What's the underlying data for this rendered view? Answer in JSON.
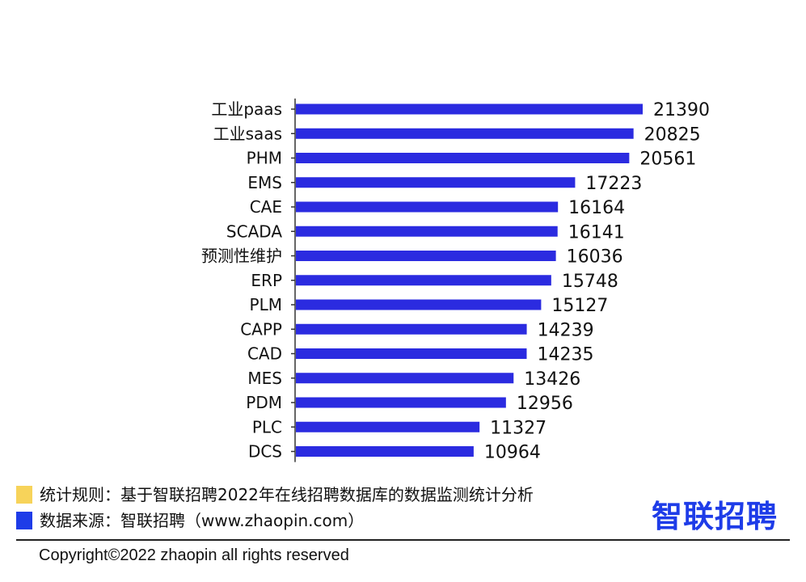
{
  "colors": {
    "bar": "#2b2be0",
    "axis": "#333333",
    "text": "#111111",
    "legend_rule_swatch": "#f7d35a",
    "legend_source_swatch": "#1e3ce8",
    "brand": "#1e3ce8"
  },
  "chart_data": {
    "type": "bar",
    "orientation": "horizontal",
    "categories": [
      "工业paas",
      "工业saas",
      "PHM",
      "EMS",
      "CAE",
      "SCADA",
      "预测性维护",
      "ERP",
      "PLM",
      "CAPP",
      "CAD",
      "MES",
      "PDM",
      "PLC",
      "DCS"
    ],
    "values": [
      21390,
      20825,
      20561,
      17223,
      16164,
      16141,
      16036,
      15748,
      15127,
      14239,
      14235,
      13426,
      12956,
      11327,
      10964
    ],
    "title": "",
    "xlabel": "",
    "ylabel": "",
    "data_labels": true,
    "grid": false,
    "legend": "none"
  },
  "legend": {
    "rule_text": "统计规则：基于智联招聘2022年在线招聘数据库的数据监测统计分析",
    "source_text": "数据来源：智联招聘（www.zhaopin.com）"
  },
  "brand": {
    "logo_text": "智联招聘"
  },
  "footer": {
    "copyright": "Copyright©2022 zhaopin all rights reserved"
  }
}
